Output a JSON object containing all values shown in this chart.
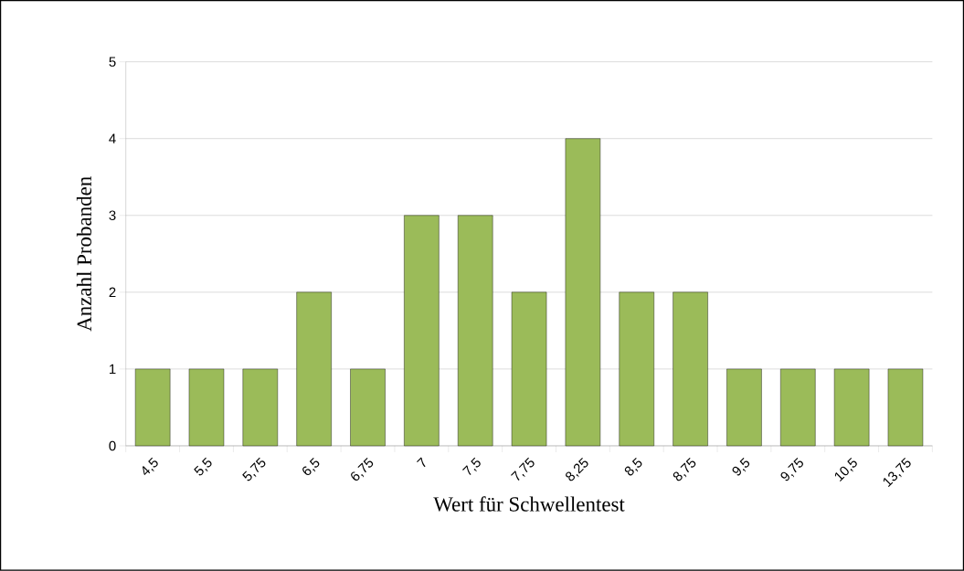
{
  "chart_data": {
    "type": "bar",
    "xlabel": "Wert für Schwellentest",
    "ylabel": "Anzahl Probanden",
    "categories": [
      "4,5",
      "5,5",
      "5,75",
      "6,5",
      "6,75",
      "7",
      "7,5",
      "7,75",
      "8,25",
      "8,5",
      "8,75",
      "9,5",
      "9,75",
      "10,5",
      "13,75"
    ],
    "values": [
      1,
      1,
      1,
      2,
      1,
      3,
      3,
      2,
      4,
      2,
      2,
      1,
      1,
      1,
      1
    ],
    "color": "#9bbb59",
    "ylim": [
      0,
      5
    ],
    "yticks": [
      0,
      1,
      2,
      3,
      4,
      5
    ],
    "grid": "y"
  }
}
